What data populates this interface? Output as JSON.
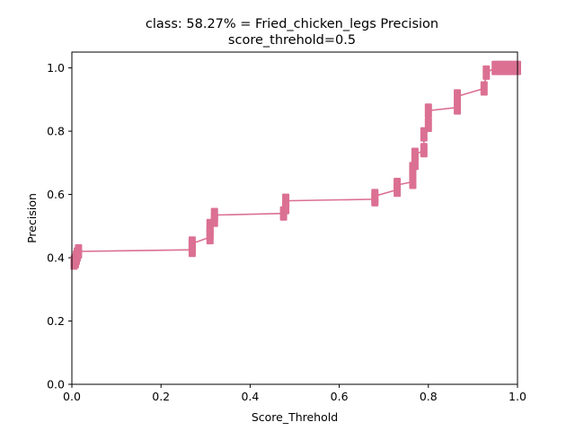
{
  "chart_data": {
    "type": "line",
    "title_line1": "class: 58.27% = Fried_chicken_legs Precision",
    "title_line2": "score_threhold=0.5",
    "xlabel": "Score_Threhold",
    "ylabel": "Precision",
    "xlim": [
      0,
      1
    ],
    "ylim": [
      0,
      1.05
    ],
    "grid": false,
    "xticks": [
      {
        "v": 0.0,
        "label": "0.0"
      },
      {
        "v": 0.2,
        "label": "0.2"
      },
      {
        "v": 0.4,
        "label": "0.4"
      },
      {
        "v": 0.6,
        "label": "0.6"
      },
      {
        "v": 0.8,
        "label": "0.8"
      },
      {
        "v": 1.0,
        "label": "1.0"
      }
    ],
    "yticks": [
      {
        "v": 0.0,
        "label": "0.0"
      },
      {
        "v": 0.2,
        "label": "0.2"
      },
      {
        "v": 0.4,
        "label": "0.4"
      },
      {
        "v": 0.6,
        "label": "0.6"
      },
      {
        "v": 0.8,
        "label": "0.8"
      },
      {
        "v": 1.0,
        "label": "1.0"
      }
    ],
    "series": [
      {
        "color": "#db7093",
        "marker": "thin-vertical",
        "x": [
          0.005,
          0.008,
          0.01,
          0.012,
          0.015,
          0.27,
          0.27,
          0.27,
          0.31,
          0.31,
          0.31,
          0.32,
          0.32,
          0.475,
          0.48,
          0.48,
          0.68,
          0.68,
          0.73,
          0.73,
          0.765,
          0.765,
          0.77,
          0.77,
          0.79,
          0.79,
          0.8,
          0.8,
          0.865,
          0.865,
          0.925,
          0.93,
          0.95,
          0.96,
          0.97,
          0.98,
          0.99,
          1.0
        ],
        "y": [
          0.385,
          0.39,
          0.4,
          0.41,
          0.42,
          0.425,
          0.435,
          0.445,
          0.465,
          0.48,
          0.5,
          0.52,
          0.535,
          0.54,
          0.56,
          0.58,
          0.585,
          0.595,
          0.615,
          0.63,
          0.64,
          0.68,
          0.7,
          0.725,
          0.74,
          0.79,
          0.82,
          0.865,
          0.875,
          0.91,
          0.935,
          0.985,
          1.0,
          1.0,
          1.0,
          1.0,
          1.0,
          1.0
        ]
      }
    ]
  }
}
